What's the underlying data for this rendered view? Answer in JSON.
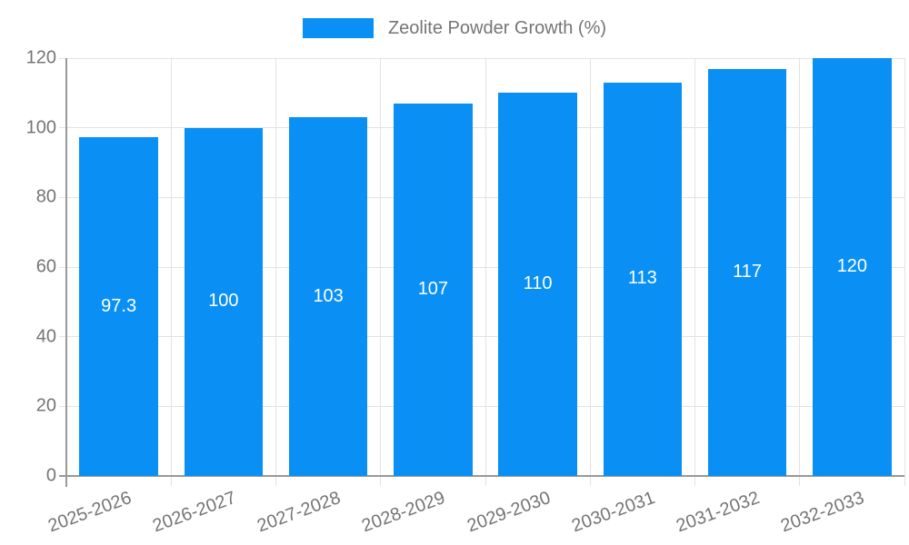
{
  "chart_data": {
    "type": "bar",
    "title": "Zeolite Powder Growth (%)",
    "legend": {
      "label": "Zeolite Powder Growth (%)",
      "position": "top-center"
    },
    "categories": [
      "2025-2026",
      "2026-2027",
      "2027-2028",
      "2028-2029",
      "2029-2030",
      "2030-2031",
      "2031-2032",
      "2032-2033"
    ],
    "values": [
      97.3,
      100,
      103,
      107,
      110,
      113,
      117,
      120
    ],
    "bar_labels": [
      "97.3",
      "100",
      "103",
      "107",
      "110",
      "113",
      "117",
      "120"
    ],
    "xlabel": "",
    "ylabel": "",
    "ylim": [
      0,
      120
    ],
    "yticks": [
      0,
      20,
      40,
      60,
      80,
      100,
      120
    ],
    "grid": "on",
    "colors": {
      "bar": "#0a90f4",
      "bar_label_text": "#ffffff",
      "axis_line": "#999999",
      "gridline": "#e3e3e3",
      "tick_text": "#757575",
      "legend_text": "#757575",
      "background": "#ffffff"
    }
  }
}
